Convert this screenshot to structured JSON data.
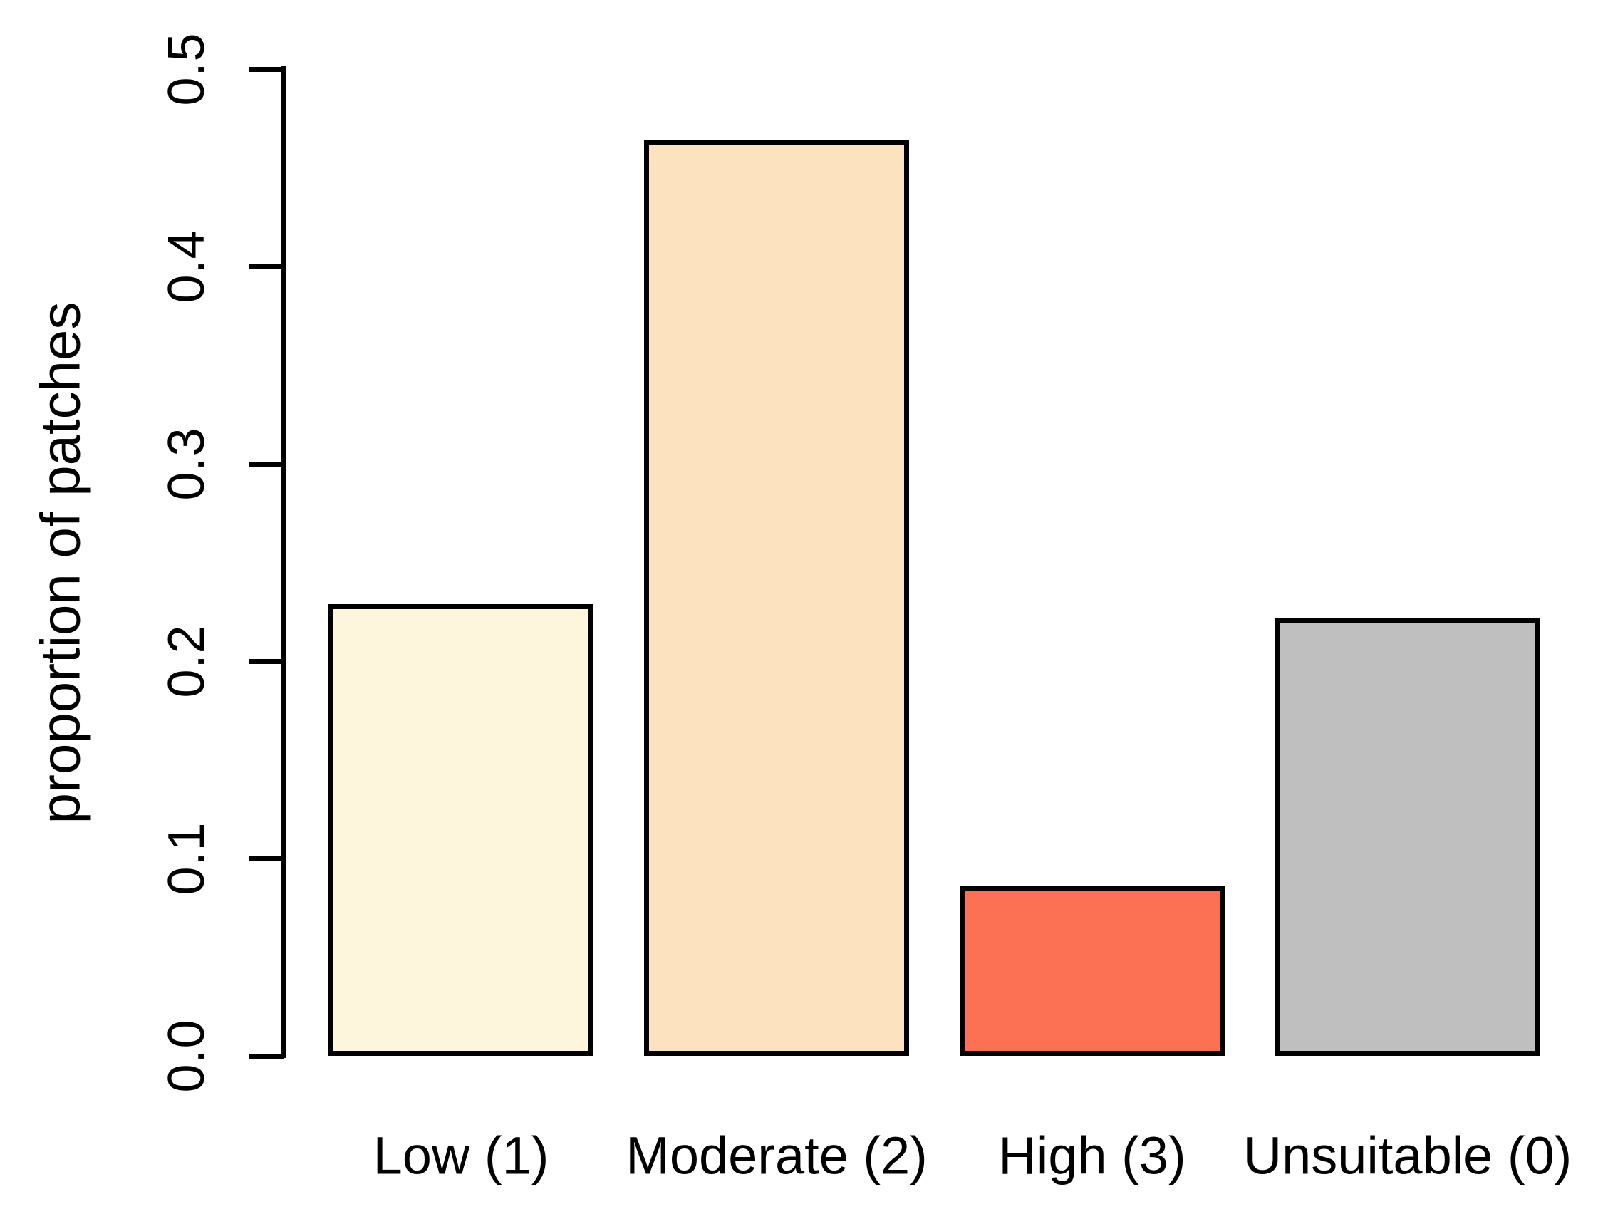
{
  "chart_data": {
    "type": "bar",
    "title": "",
    "xlabel": "",
    "ylabel": "proportion of patches",
    "categories": [
      "Low (1)",
      "Moderate (2)",
      "High (3)",
      "Unsuitable (0)"
    ],
    "values": [
      0.229,
      0.464,
      0.086,
      0.222
    ],
    "bar_colors": [
      "#FDF5DC",
      "#FDE2C0",
      "#FC7054",
      "#BFBFBF"
    ],
    "bar_border_color": "#000000",
    "axis_color": "#000000",
    "text_color": "#000000",
    "background_color": "#FFFFFF",
    "ylim": [
      0,
      0.5
    ],
    "yticks": [
      "0.0",
      "0.1",
      "0.2",
      "0.3",
      "0.4",
      "0.5"
    ],
    "grid": false,
    "legend": false
  }
}
